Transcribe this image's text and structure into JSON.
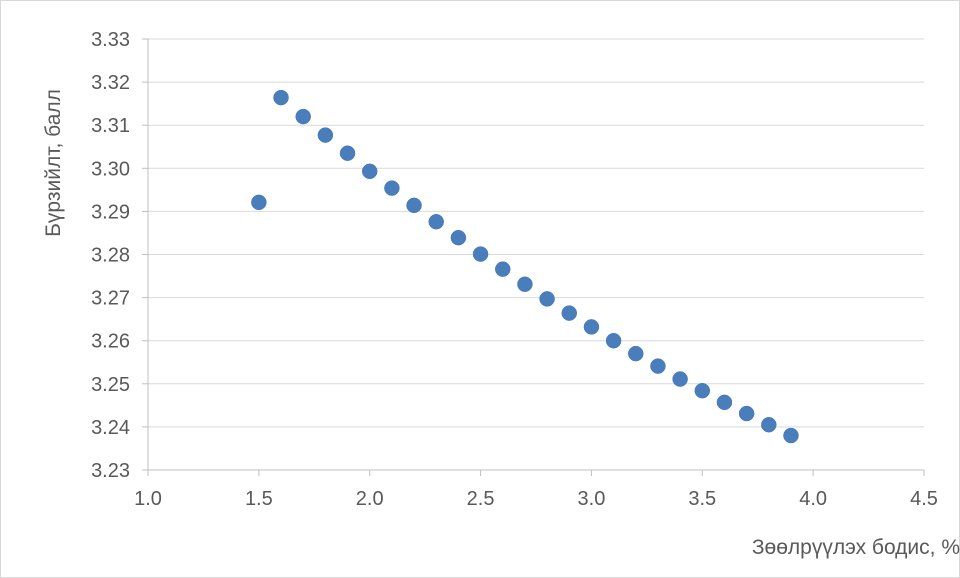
{
  "chart_data": {
    "type": "scatter",
    "title": "",
    "xlabel": "Зөөлрүүлэх бодис, %",
    "ylabel": "Бүрзийлт, балл",
    "xlim": [
      1.0,
      4.5
    ],
    "ylim": [
      3.23,
      3.33
    ],
    "x_ticks": [
      1.0,
      1.5,
      2.0,
      2.5,
      3.0,
      3.5,
      4.0,
      4.5
    ],
    "x_tick_labels": [
      "1.0",
      "1.5",
      "2.0",
      "2.5",
      "3.0",
      "3.5",
      "4.0",
      "4.5"
    ],
    "y_ticks": [
      3.23,
      3.24,
      3.25,
      3.26,
      3.27,
      3.28,
      3.29,
      3.3,
      3.31,
      3.32,
      3.33
    ],
    "y_tick_labels": [
      "3.23",
      "3.24",
      "3.25",
      "3.26",
      "3.27",
      "3.28",
      "3.29",
      "3.30",
      "3.31",
      "3.32",
      "3.33"
    ],
    "grid": "horizontal",
    "legend": "none",
    "marker_color": "#4a7ebb",
    "points": [
      {
        "x": 1.5,
        "y": 3.2921
      },
      {
        "x": 1.6,
        "y": 3.3164
      },
      {
        "x": 1.7,
        "y": 3.312
      },
      {
        "x": 1.8,
        "y": 3.3077
      },
      {
        "x": 1.9,
        "y": 3.3035
      },
      {
        "x": 2.0,
        "y": 3.2993
      },
      {
        "x": 2.1,
        "y": 3.2954
      },
      {
        "x": 2.2,
        "y": 3.2914
      },
      {
        "x": 2.3,
        "y": 3.2876
      },
      {
        "x": 2.4,
        "y": 3.2839
      },
      {
        "x": 2.5,
        "y": 3.2801
      },
      {
        "x": 2.6,
        "y": 3.2766
      },
      {
        "x": 2.7,
        "y": 3.2731
      },
      {
        "x": 2.8,
        "y": 3.2697
      },
      {
        "x": 2.9,
        "y": 3.2664
      },
      {
        "x": 3.0,
        "y": 3.2632
      },
      {
        "x": 3.1,
        "y": 3.26
      },
      {
        "x": 3.2,
        "y": 3.257
      },
      {
        "x": 3.3,
        "y": 3.2541
      },
      {
        "x": 3.4,
        "y": 3.2511
      },
      {
        "x": 3.5,
        "y": 3.2484
      },
      {
        "x": 3.6,
        "y": 3.2457
      },
      {
        "x": 3.7,
        "y": 3.2431
      },
      {
        "x": 3.8,
        "y": 3.2405
      },
      {
        "x": 3.9,
        "y": 3.238
      }
    ]
  }
}
